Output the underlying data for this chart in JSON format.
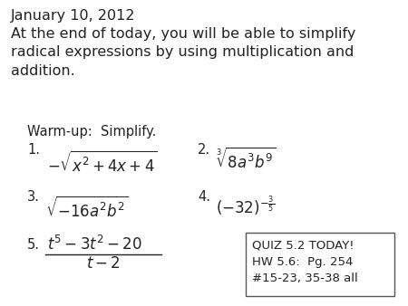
{
  "bg_color": "#ffffff",
  "title_line1": "January 10, 2012",
  "title_line2": "At the end of today, you will be able to simplify\nradical expressions by using multiplication and\naddition.",
  "warmup_label": "Warm-up:  Simplify.",
  "box_text": "QUIZ 5.2 TODAY!\nHW 5.6:  Pg. 254\n#15-23, 35-38 all",
  "font_size_title": 11.5,
  "font_size_body": 10.5,
  "font_size_math": 12,
  "font_size_box": 9.5,
  "text_color": "#222222"
}
